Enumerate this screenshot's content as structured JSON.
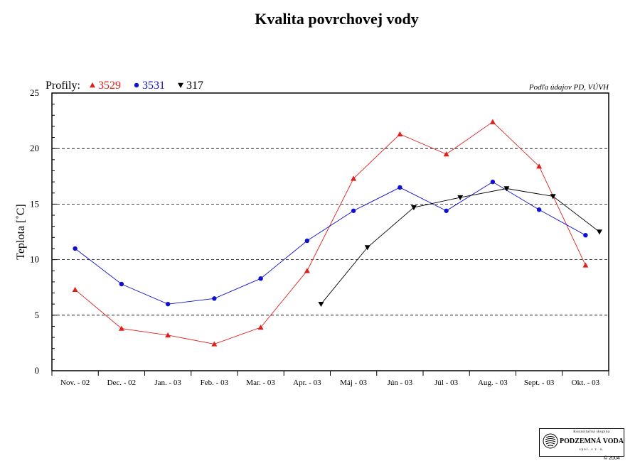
{
  "chart_data": {
    "type": "line",
    "title": "Kvalita povrchovej vody",
    "ylabel": "Teplota [˚C]",
    "xlabel": "",
    "source_note": "Podľa údajov PD, VÚVH",
    "legend_prefix": "Profily:",
    "legend_placement": "top-left",
    "categories": [
      "Nov. - 02",
      "Dec. - 02",
      "Jan. - 03",
      "Feb. - 03",
      "Mar. - 03",
      "Apr. - 03",
      "Máj - 03",
      "Jún - 03",
      "Júl - 03",
      "Aug. - 03",
      "Sept. - 03",
      "Okt. - 03"
    ],
    "ylim": [
      0,
      25
    ],
    "yticks": [
      0,
      5,
      10,
      15,
      20,
      25
    ],
    "grid": "horizontal dashed",
    "series": [
      {
        "name": "3529",
        "color": "#e0201a",
        "marker": "triangle-up",
        "x": [
          0,
          1,
          2,
          3,
          4,
          5,
          6,
          7,
          8,
          9,
          10,
          11
        ],
        "values": [
          7.3,
          3.8,
          3.2,
          2.4,
          3.9,
          9.0,
          17.3,
          21.3,
          19.5,
          22.4,
          18.4,
          9.5
        ]
      },
      {
        "name": "3531",
        "color": "#1010d0",
        "marker": "circle",
        "x": [
          0,
          1,
          2,
          3,
          4,
          5,
          6,
          7,
          8,
          9,
          10,
          11
        ],
        "values": [
          11.0,
          7.8,
          6.0,
          6.5,
          8.3,
          11.7,
          14.4,
          16.5,
          14.4,
          17.0,
          14.5,
          12.2
        ]
      },
      {
        "name": "317",
        "color": "#000000",
        "marker": "triangle-down",
        "x": [
          5,
          6,
          7,
          8,
          9,
          10,
          11
        ],
        "offset": 0.3,
        "values": [
          6.0,
          11.1,
          14.7,
          15.6,
          16.4,
          15.7,
          12.5
        ]
      }
    ]
  },
  "logo": {
    "small": "Konzultačná skupina",
    "big": "PODZEMNÁ VODA",
    "sub": "spol. s r. o."
  },
  "copyright": "© 2004"
}
